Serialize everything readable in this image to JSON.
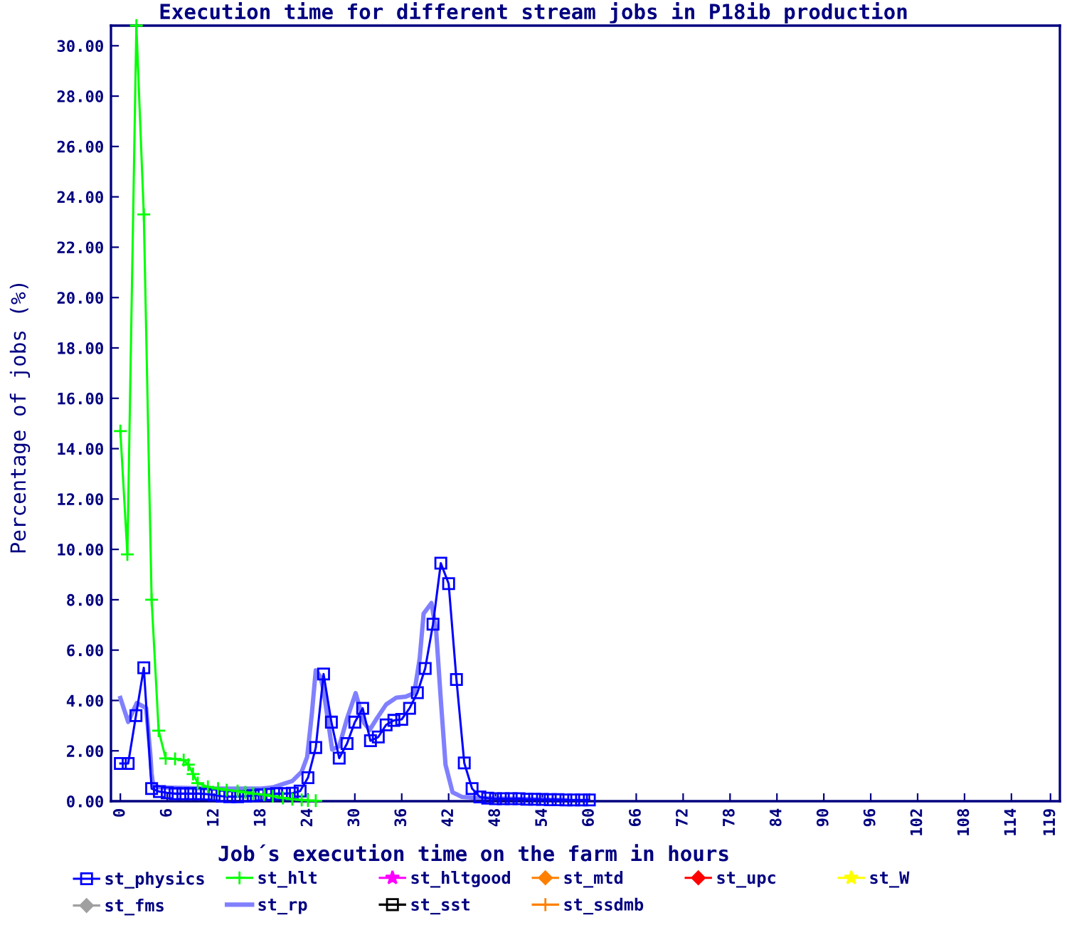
{
  "chart_data": {
    "type": "line",
    "title": "Execution time for different stream jobs in P18ib production",
    "xlabel": "Job´s execution time on the farm in hours",
    "ylabel": "Percentage of jobs (%)",
    "xlim": [
      -1.2,
      120.2
    ],
    "xticks": [
      0,
      6,
      12,
      18,
      24,
      30,
      36,
      42,
      48,
      54,
      60,
      66,
      72,
      78,
      84,
      90,
      96,
      102,
      108,
      114,
      119
    ],
    "ylim": [
      0,
      30.8
    ],
    "yticks": [
      {
        "value": 0,
        "label": "0.00"
      },
      {
        "value": 2,
        "label": "2.00"
      },
      {
        "value": 4,
        "label": "4.00"
      },
      {
        "value": 6,
        "label": "6.00"
      },
      {
        "value": 8,
        "label": "8.00"
      },
      {
        "value": 10,
        "label": "10.00"
      },
      {
        "value": 12,
        "label": "12.00"
      },
      {
        "value": 14,
        "label": "14.00"
      },
      {
        "value": 16,
        "label": "16.00"
      },
      {
        "value": 18,
        "label": "18.00"
      },
      {
        "value": 20,
        "label": "20.00"
      },
      {
        "value": 22,
        "label": "22.00"
      },
      {
        "value": 24,
        "label": "24.00"
      },
      {
        "value": 26,
        "label": "26.00"
      },
      {
        "value": 28,
        "label": "28.00"
      },
      {
        "value": 30,
        "label": "30.00"
      }
    ],
    "legend": "bottom",
    "series": [
      {
        "name": "st_physics",
        "color": "#0000ff",
        "marker": "square",
        "x": [
          0,
          1,
          2,
          3,
          4,
          5,
          6,
          7,
          8,
          9,
          10,
          11,
          12,
          13,
          14,
          15,
          16,
          17,
          18,
          19,
          20,
          21,
          22,
          23,
          24,
          25,
          26,
          27,
          28,
          29,
          30,
          31,
          32,
          33,
          34,
          35,
          36,
          37,
          38,
          39,
          40,
          41,
          42,
          43,
          44,
          45,
          46,
          47,
          48,
          49,
          50,
          51,
          52,
          53,
          54,
          55,
          56,
          57,
          58,
          59,
          60
        ],
        "values": [
          1.5,
          1.5,
          3.4,
          5.3,
          0.5,
          0.38,
          0.33,
          0.3,
          0.3,
          0.3,
          0.3,
          0.28,
          0.25,
          0.2,
          0.18,
          0.18,
          0.2,
          0.22,
          0.25,
          0.27,
          0.3,
          0.3,
          0.32,
          0.4,
          0.93,
          2.13,
          5.05,
          3.14,
          1.71,
          2.29,
          3.14,
          3.69,
          2.4,
          2.55,
          3.03,
          3.21,
          3.25,
          3.69,
          4.31,
          5.27,
          7.03,
          9.45,
          8.64,
          4.83,
          1.52,
          0.5,
          0.17,
          0.12,
          0.1,
          0.1,
          0.1,
          0.1,
          0.08,
          0.08,
          0.07,
          0.06,
          0.06,
          0.05,
          0.05,
          0.05,
          0.05
        ]
      },
      {
        "name": "st_hlt",
        "color": "#00ff00",
        "marker": "cross",
        "x": [
          0,
          0.9,
          2.05,
          3.0,
          4.0,
          4.9,
          5.8,
          7,
          8.1,
          8.7,
          9.3,
          9.9,
          11.2,
          12.5,
          13.6,
          15,
          16,
          17,
          18.4,
          19.5,
          20.8,
          22,
          23.2,
          24,
          25
        ],
        "values": [
          14.7,
          9.8,
          30.8,
          23.3,
          8.0,
          2.8,
          1.7,
          1.68,
          1.63,
          1.45,
          1.08,
          0.72,
          0.57,
          0.5,
          0.44,
          0.4,
          0.35,
          0.3,
          0.26,
          0.2,
          0.13,
          0.08,
          0.05,
          0.03,
          0.02
        ]
      },
      {
        "name": "st_hltgood",
        "color": "#ff00ff",
        "marker": "star"
      },
      {
        "name": "st_mtd",
        "color": "#ff8000",
        "marker": "diamond"
      },
      {
        "name": "st_upc",
        "color": "#ff0000",
        "marker": "diamond"
      },
      {
        "name": "st_W",
        "color": "#ffff00",
        "marker": "star"
      },
      {
        "name": "st_fms",
        "color": "#a0a0a0",
        "marker": "diamond"
      },
      {
        "name": "st_rp",
        "color": "#8080ff",
        "marker": "none",
        "x": [
          0,
          1.0,
          2.1,
          2.7,
          3.3,
          3.8,
          4.0,
          4.2,
          5,
          8,
          12,
          16,
          18,
          19.5,
          20.8,
          22,
          23.2,
          23.9,
          24.5,
          25.0,
          25.6,
          26.0,
          27.1,
          28.0,
          29.0,
          30.1,
          31.2,
          31.9,
          32.8,
          34.0,
          35.3,
          36.5,
          37.6,
          38.3,
          38.8,
          39.8,
          40.4,
          41.0,
          41.6,
          42.5,
          43.7,
          46,
          50,
          53.3,
          57
        ],
        "values": [
          4.1,
          3.15,
          3.9,
          3.8,
          3.7,
          2.0,
          1.1,
          0.62,
          0.55,
          0.53,
          0.5,
          0.5,
          0.5,
          0.55,
          0.68,
          0.8,
          1.17,
          1.76,
          3.47,
          5.2,
          4.94,
          4.4,
          2.05,
          2.18,
          3.28,
          4.29,
          3.1,
          2.83,
          3.28,
          3.84,
          4.11,
          4.15,
          4.29,
          5.67,
          7.45,
          7.87,
          6.77,
          4.02,
          1.45,
          0.35,
          0.17,
          0.12,
          0.1,
          0.07,
          0.04
        ]
      },
      {
        "name": "st_sst",
        "color": "#000000",
        "marker": "square"
      },
      {
        "name": "st_ssdmb",
        "color": "#ff8000",
        "marker": "cross"
      }
    ]
  }
}
